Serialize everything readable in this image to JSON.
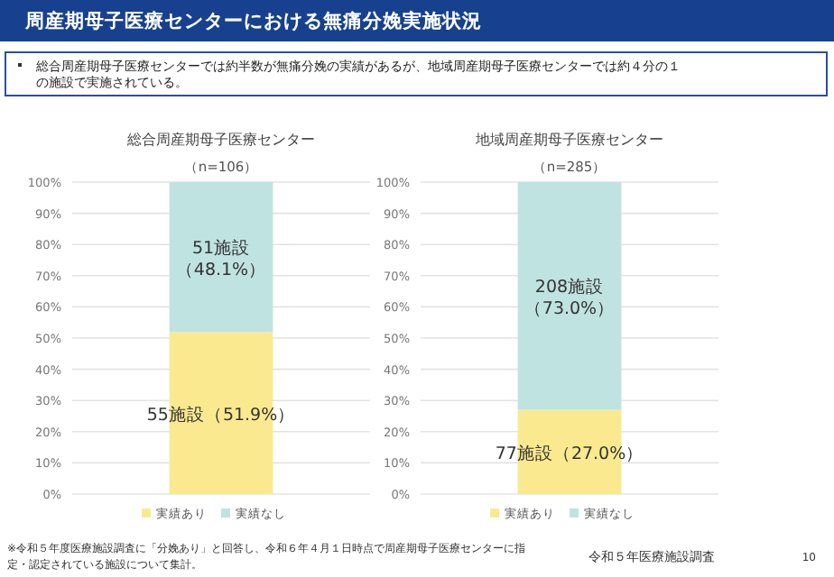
{
  "chart_data": [
    {
      "type": "bar",
      "title": "総合周産期母子医療センター",
      "subtitle": "（n=106）",
      "categories": [
        null
      ],
      "stacked": true,
      "ylim": [
        0,
        100
      ],
      "yticks": [
        {
          "value": 0,
          "label": "0%"
        },
        {
          "value": 10,
          "label": "10%"
        },
        {
          "value": 20,
          "label": "20%"
        },
        {
          "value": 30,
          "label": "30%"
        },
        {
          "value": 40,
          "label": "40%"
        },
        {
          "value": 50,
          "label": "50%"
        },
        {
          "value": 60,
          "label": "60%"
        },
        {
          "value": 70,
          "label": "70%"
        },
        {
          "value": 80,
          "label": "80%"
        },
        {
          "value": 90,
          "label": "90%"
        },
        {
          "value": 100,
          "label": "100%"
        }
      ],
      "grid": "y",
      "legend": "bottom",
      "series": [
        {
          "name": "実績あり",
          "color": "#fbe98f",
          "values": [
            51.9
          ],
          "value_labels": [
            "55施設（51.9%）"
          ]
        },
        {
          "name": "実績なし",
          "color": "#bfe3e0",
          "values": [
            48.1
          ],
          "value_labels": [
            "51施設（48.1%）"
          ]
        }
      ],
      "annotations": [
        "周産期母子医療センターにおける無痛分娩実施状況",
        "総合周産期母子医療センターでは約半数が無痛分娩の実績があるが、地域周産期母子医療センターでは約４分の１の施設で実施されている。",
        "※令和５年度医療施設調査に「分娩あり」と回答し、令和６年４月１日時点で周産期母子医療センターに指定・認定されている施設について集計。",
        "令和５年医療施設調査",
        "10"
      ]
    },
    {
      "type": "bar",
      "title": "地域周産期母子医療センター",
      "subtitle": "（n=285）",
      "categories": [
        null
      ],
      "stacked": true,
      "ylim": [
        0,
        100
      ],
      "yticks": [
        {
          "value": 0,
          "label": "0%"
        },
        {
          "value": 10,
          "label": "10%"
        },
        {
          "value": 20,
          "label": "20%"
        },
        {
          "value": 30,
          "label": "30%"
        },
        {
          "value": 40,
          "label": "40%"
        },
        {
          "value": 50,
          "label": "50%"
        },
        {
          "value": 60,
          "label": "60%"
        },
        {
          "value": 70,
          "label": "70%"
        },
        {
          "value": 80,
          "label": "80%"
        },
        {
          "value": 90,
          "label": "90%"
        },
        {
          "value": 100,
          "label": "100%"
        }
      ],
      "grid": "y",
      "legend": "bottom",
      "series": [
        {
          "name": "実績あり",
          "color": "#fbe98f",
          "values": [
            27.0
          ],
          "value_labels": [
            "77施設（27.0%）"
          ]
        },
        {
          "name": "実績なし",
          "color": "#bfe3e0",
          "values": [
            73.0
          ],
          "value_labels": [
            "208施設（73.0%）"
          ]
        }
      ]
    }
  ]
}
